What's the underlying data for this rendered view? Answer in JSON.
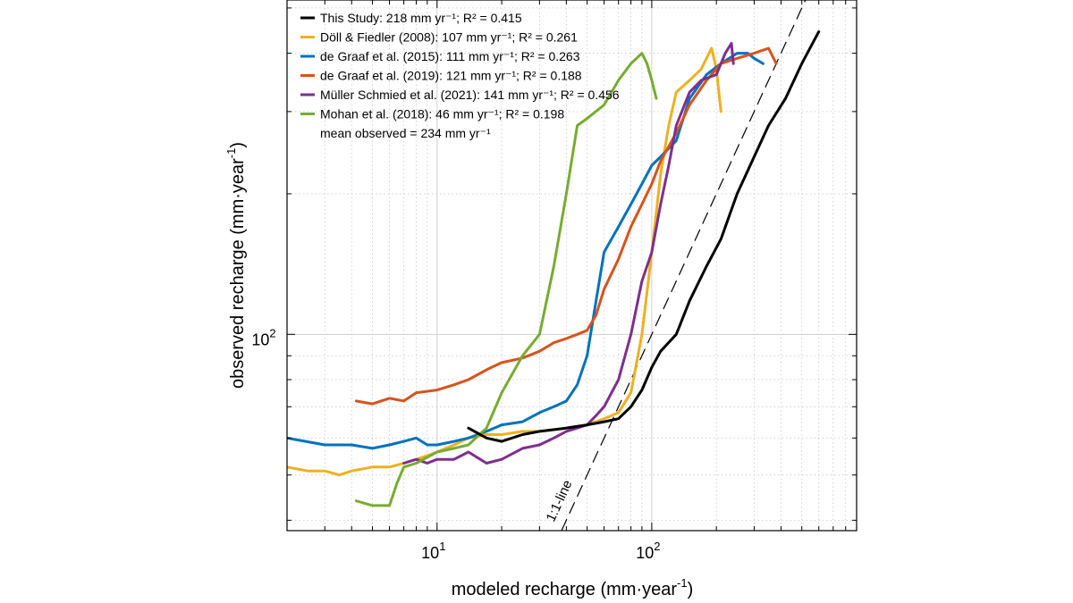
{
  "chart_data": {
    "type": "line",
    "xlabel": "modeled recharge (mm·year",
    "xlabel_sup": "-1",
    "xlabel_tail": ")",
    "ylabel": "observed recharge (mm·year",
    "ylabel_sup": "-1",
    "ylabel_tail": ")",
    "x_scale": "log",
    "y_scale": "log",
    "xlim": [
      2,
      900
    ],
    "ylim": [
      38,
      520
    ],
    "x_ticks": [
      {
        "value": 10,
        "base": "10",
        "exp": "1"
      },
      {
        "value": 100,
        "base": "10",
        "exp": "2"
      }
    ],
    "y_ticks": [
      {
        "value": 100,
        "base": "10",
        "exp": "2"
      }
    ],
    "grid": true,
    "legend_position": "top-left",
    "legend": [
      {
        "label": "This Study: 218 mm yr⁻¹; R² = 0.415",
        "color": "#000000"
      },
      {
        "label": "Döll & Fiedler (2008): 107 mm yr⁻¹; R² = 0.261",
        "color": "#EDB120"
      },
      {
        "label": "de Graaf et al. (2015): 111 mm yr⁻¹; R² = 0.263",
        "color": "#0072BD"
      },
      {
        "label": "de Graaf et al. (2019): 121 mm yr⁻¹; R² = 0.188",
        "color": "#D95319"
      },
      {
        "label": "Müller Schmied et al. (2021): 141 mm yr⁻¹; R² = 0.456",
        "color": "#7E2F8E"
      },
      {
        "label": "Mohan et al. (2018): 46 mm yr⁻¹; R² = 0.198",
        "color": "#77AC30"
      }
    ],
    "mean_observed": "mean observed = 234 mm yr⁻¹",
    "one_to_one_label": "1:1-line",
    "series": [
      {
        "color": "#000000",
        "x": [
          14,
          17,
          20,
          25,
          30,
          40,
          50,
          60,
          70,
          80,
          90,
          100,
          110,
          130,
          150,
          180,
          210,
          250,
          300,
          350,
          420,
          500,
          600
        ],
        "y": [
          63,
          60,
          59,
          61,
          62,
          63,
          64,
          65,
          66,
          70,
          76,
          85,
          92,
          100,
          118,
          140,
          160,
          200,
          240,
          280,
          320,
          380,
          445
        ]
      },
      {
        "color": "#EDB120",
        "x": [
          2,
          2.5,
          3,
          3.5,
          4,
          5,
          6,
          7,
          8,
          9,
          10,
          12,
          14,
          17,
          20,
          25,
          30,
          40,
          50,
          60,
          70,
          80,
          90,
          100,
          110,
          120,
          130,
          150,
          170,
          190,
          200,
          210
        ],
        "y": [
          52,
          51,
          51,
          50,
          51,
          52,
          52,
          53,
          54,
          55,
          56,
          58,
          60,
          61,
          61,
          62,
          62,
          63,
          64,
          66,
          68,
          75,
          100,
          150,
          220,
          280,
          330,
          350,
          370,
          410,
          370,
          300
        ]
      },
      {
        "color": "#0072BD",
        "x": [
          2,
          3,
          4,
          5,
          6,
          7,
          8,
          9,
          10,
          12,
          14,
          17,
          20,
          25,
          30,
          35,
          40,
          45,
          50,
          55,
          60,
          70,
          80,
          90,
          100,
          110,
          130,
          150,
          180,
          210,
          250,
          280,
          300,
          330
        ],
        "y": [
          60,
          58,
          58,
          57,
          58,
          59,
          60,
          58,
          58,
          59,
          60,
          62,
          64,
          65,
          68,
          70,
          72,
          78,
          90,
          118,
          150,
          170,
          190,
          210,
          230,
          240,
          260,
          320,
          360,
          380,
          400,
          400,
          390,
          380
        ]
      },
      {
        "color": "#D95319",
        "x": [
          4.2,
          5,
          6,
          7,
          8,
          10,
          12,
          14,
          17,
          20,
          25,
          30,
          35,
          40,
          45,
          50,
          55,
          60,
          70,
          80,
          90,
          100,
          110,
          130,
          150,
          180,
          210,
          250,
          300,
          350,
          380
        ],
        "y": [
          72,
          71,
          73,
          72,
          75,
          76,
          78,
          80,
          84,
          87,
          89,
          92,
          96,
          98,
          100,
          102,
          110,
          125,
          145,
          170,
          190,
          210,
          235,
          270,
          310,
          350,
          380,
          390,
          400,
          410,
          380
        ]
      },
      {
        "color": "#7E2F8E",
        "x": [
          7,
          8,
          9,
          10,
          12,
          14,
          17,
          20,
          25,
          30,
          35,
          40,
          45,
          50,
          55,
          60,
          70,
          80,
          90,
          100,
          110,
          120,
          130,
          150,
          170,
          200,
          220,
          235,
          240
        ],
        "y": [
          53,
          54,
          53,
          54,
          54,
          56,
          53,
          54,
          57,
          58,
          60,
          62,
          63,
          64,
          67,
          70,
          80,
          100,
          130,
          150,
          190,
          230,
          280,
          330,
          350,
          360,
          400,
          420,
          380
        ]
      },
      {
        "color": "#77AC30",
        "x": [
          4.2,
          5,
          6,
          6.5,
          7,
          8,
          10,
          12,
          14,
          17,
          20,
          25,
          30,
          35,
          40,
          45,
          50,
          60,
          70,
          80,
          90,
          95,
          100,
          105
        ],
        "y": [
          44,
          43,
          43,
          48,
          52,
          53,
          56,
          57,
          58,
          63,
          75,
          90,
          100,
          140,
          200,
          280,
          290,
          310,
          350,
          380,
          400,
          380,
          350,
          320
        ]
      }
    ]
  }
}
